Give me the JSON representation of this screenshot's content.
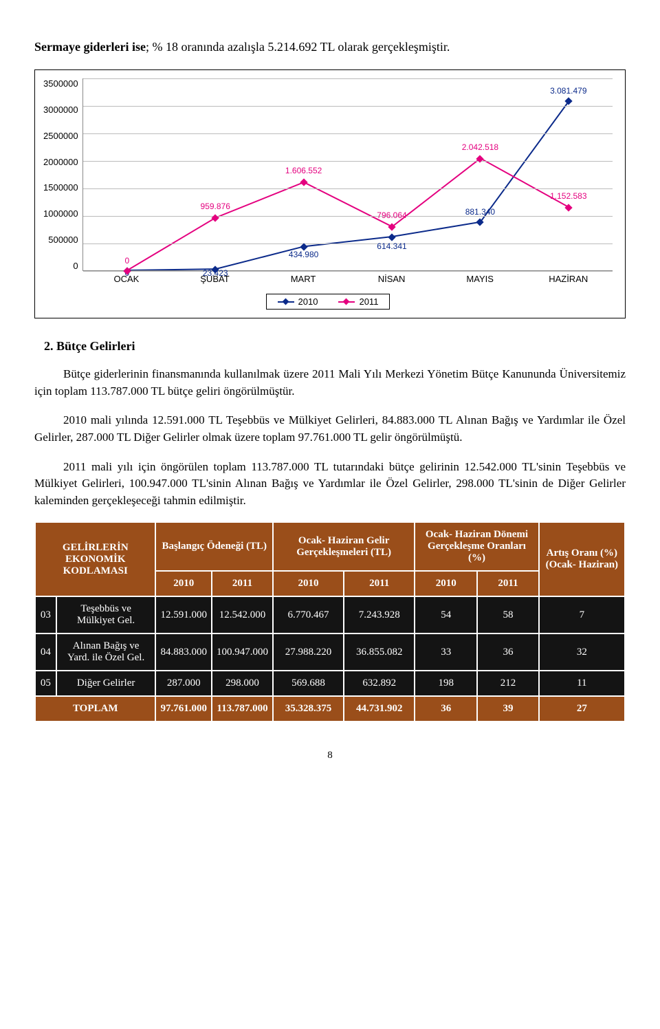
{
  "intro_label": "Sermaye giderleri ise",
  "intro_rest": "; % 18 oranında azalışla 5.214.692 TL olarak gerçekleşmiştir.",
  "chart": {
    "type": "line",
    "y_ticks": [
      "3500000",
      "3000000",
      "2500000",
      "2000000",
      "1500000",
      "1000000",
      "500000",
      "0"
    ],
    "y_max": 3500000,
    "x_labels": [
      "OCAK",
      "ŞUBAT",
      "MART",
      "NİSAN",
      "MAYIS",
      "HAZİRAN"
    ],
    "series": [
      {
        "name": "2010",
        "color": "#0b2a8a",
        "values": [
          0,
          23423,
          434980,
          614341,
          881340,
          3081479
        ],
        "labels": [
          "0",
          "23.423",
          "434.980",
          "614.341",
          "881.340",
          "3.081.479"
        ],
        "label_dy": [
          10,
          12,
          18,
          20,
          -8,
          -8
        ]
      },
      {
        "name": "2011",
        "color": "#e4007f",
        "values": [
          0,
          959876,
          1606552,
          796064,
          2042518,
          1152583
        ],
        "labels": [
          "0",
          "959.876",
          "1.606.552",
          "796.064",
          "2.042.518",
          "1.152.583"
        ],
        "label_dy": [
          -8,
          -10,
          -10,
          -10,
          -10,
          -10
        ]
      }
    ],
    "legend_labels": [
      "2010",
      "2011"
    ]
  },
  "section_title": "2. Bütçe Gelirleri",
  "para1": "Bütçe giderlerinin finansmanında kullanılmak üzere 2011 Mali Yılı Merkezi Yönetim Bütçe Kanununda Üniversitemiz için toplam 113.787.000 TL bütçe geliri öngörülmüştür.",
  "para2": "2010 mali yılında 12.591.000 TL Teşebbüs ve Mülkiyet Gelirleri, 84.883.000 TL Alınan Bağış ve Yardımlar ile Özel Gelirler, 287.000 TL Diğer Gelirler olmak üzere toplam 97.761.000 TL gelir öngörülmüştü.",
  "para3": "2011 mali yılı için öngörülen toplam 113.787.000 TL tutarındaki bütçe gelirinin 12.542.000 TL'sinin Teşebbüs ve Mülkiyet Gelirleri, 100.947.000 TL'sinin Alınan Bağış ve Yardımlar ile Özel Gelirler, 298.000 TL'sinin de Diğer Gelirler kaleminden gerçekleşeceği tahmin edilmiştir.",
  "table": {
    "head": {
      "c0": "",
      "c1": "GELİRLERİN EKONOMİK KODLAMASI",
      "c2": "Başlangıç Ödeneği (TL)",
      "c3": "Ocak- Haziran Gelir Gerçekleşmeleri (TL)",
      "c4": "Ocak- Haziran Dönemi Gerçekleşme Oranları (%)",
      "c5": "Artış Oranı (%) (Ocak- Haziran)"
    },
    "years": [
      "2010",
      "2011",
      "2010",
      "2011",
      "2010",
      "2011"
    ],
    "rows": [
      {
        "code": "03",
        "name": "Teşebbüs ve Mülkiyet Gel.",
        "v": [
          "12.591.000",
          "12.542.000",
          "6.770.467",
          "7.243.928",
          "54",
          "58",
          "7"
        ]
      },
      {
        "code": "04",
        "name": "Alınan Bağış ve Yard. ile Özel Gel.",
        "v": [
          "84.883.000",
          "100.947.000",
          "27.988.220",
          "36.855.082",
          "33",
          "36",
          "32"
        ]
      },
      {
        "code": "05",
        "name": "Diğer Gelirler",
        "v": [
          "287.000",
          "298.000",
          "569.688",
          "632.892",
          "198",
          "212",
          "11"
        ]
      }
    ],
    "total": {
      "label": "TOPLAM",
      "v": [
        "97.761.000",
        "113.787.000",
        "35.328.375",
        "44.731.902",
        "36",
        "39",
        "27"
      ]
    }
  },
  "page_number": "8"
}
